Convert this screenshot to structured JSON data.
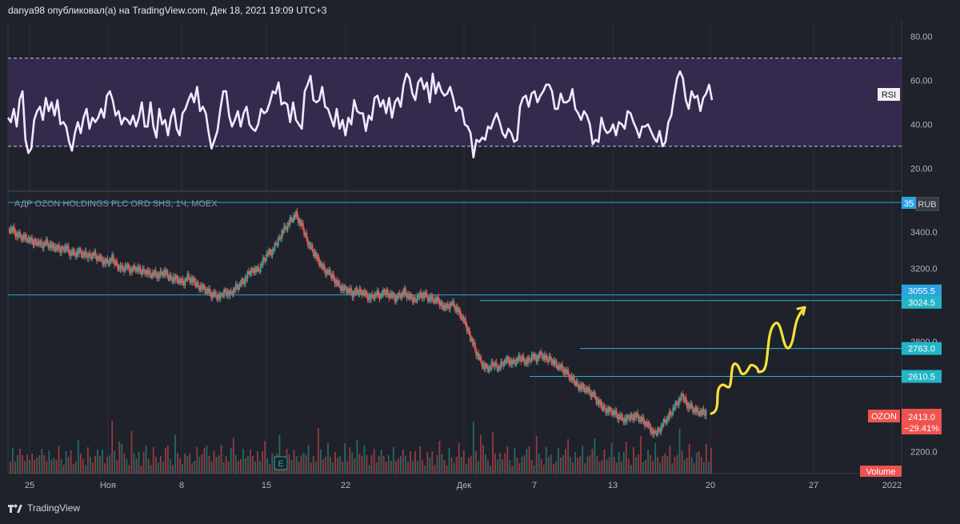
{
  "header": "danya98 опубликовал(а) на TradingView.com, Дек 18, 2021 19:09 UTC+3",
  "footer": {
    "brand": "TradingView"
  },
  "colors": {
    "bg": "#1f222b",
    "rsi_band": "#3a2c55",
    "rsi_line": "#f3e8ff",
    "hline": "#2aa3e0",
    "cyan": "#22b5c8",
    "red": "#ef5350",
    "green": "#26a69a",
    "arrow": "#f5e23a"
  },
  "chart_data": [
    {
      "type": "line",
      "indicator": "RSI",
      "label": "RSI",
      "y_ticks": [
        "80.00",
        "60.00",
        "40.00",
        "20.00"
      ],
      "ylim": [
        10,
        87
      ],
      "band": [
        30,
        70
      ],
      "values": [
        43,
        41,
        47,
        39,
        51,
        55,
        33,
        27,
        29,
        42,
        46,
        48,
        42,
        52,
        46,
        50,
        44,
        51,
        40,
        41,
        39,
        32,
        28,
        36,
        41,
        36,
        43,
        47,
        38,
        43,
        41,
        43,
        47,
        43,
        53,
        55,
        51,
        44,
        46,
        40,
        43,
        42,
        40,
        44,
        39,
        43,
        50,
        39,
        39,
        50,
        39,
        34,
        47,
        40,
        42,
        35,
        43,
        47,
        38,
        35,
        45,
        47,
        51,
        54,
        50,
        57,
        46,
        48,
        45,
        36,
        29,
        33,
        37,
        47,
        55,
        55,
        44,
        39,
        42,
        46,
        39,
        45,
        48,
        40,
        38,
        37,
        40,
        47,
        45,
        46,
        50,
        55,
        54,
        59,
        49,
        50,
        49,
        41,
        50,
        42,
        40,
        38,
        55,
        58,
        62,
        51,
        50,
        51,
        57,
        48,
        47,
        43,
        39,
        47,
        38,
        42,
        35,
        43,
        40,
        51,
        46,
        45,
        45,
        37,
        44,
        42,
        52,
        53,
        48,
        51,
        45,
        52,
        43,
        50,
        52,
        48,
        58,
        63,
        61,
        54,
        51,
        59,
        61,
        56,
        59,
        50,
        63,
        54,
        59,
        55,
        53,
        54,
        57,
        52,
        46,
        48,
        47,
        40,
        39,
        36,
        25,
        33,
        32,
        34,
        33,
        39,
        38,
        42,
        45,
        41,
        36,
        34,
        38,
        36,
        32,
        33,
        48,
        52,
        53,
        48,
        54,
        55,
        50,
        53,
        55,
        58,
        58,
        55,
        47,
        47,
        54,
        50,
        50,
        51,
        56,
        47,
        45,
        42,
        46,
        44,
        40,
        31,
        33,
        32,
        43,
        38,
        36,
        37,
        40,
        35,
        41,
        40,
        38,
        46,
        45,
        41,
        38,
        34,
        39,
        39,
        40,
        37,
        34,
        32,
        37,
        30,
        32,
        41,
        44,
        53,
        61,
        64,
        61,
        51,
        47,
        55,
        52,
        53,
        46,
        52,
        54,
        58,
        51
      ]
    },
    {
      "type": "candlestick",
      "symbol": "АДР OZON HOLDINGS PLC ORD SHS, 1Ч, MOEX",
      "currency": "RUB",
      "ylim": [
        2080,
        3600
      ],
      "y_ticks": [
        "3400.0",
        "3200.0",
        "2800.0",
        "2600.0",
        "2200.0"
      ],
      "x_ticks": [
        "25",
        "Ноя",
        "8",
        "15",
        "22",
        "Дек",
        "7",
        "13",
        "20",
        "27",
        "2022"
      ],
      "price_labels": [
        {
          "text": "3055.5",
          "value": 3055.5
        },
        {
          "text": "3024.5",
          "value": 3024.5
        },
        {
          "text": "2763.0",
          "value": 2763.0
        },
        {
          "text": "2610.5",
          "value": 2610.5
        }
      ],
      "last_price": {
        "symbol": "OZON",
        "value": "2413.0",
        "change": "−29.41%"
      },
      "top_partial_label": "35",
      "volume_label": "Volume",
      "event_marker": "E",
      "close_path": [
        3420,
        3410,
        3380,
        3370,
        3360,
        3340,
        3350,
        3330,
        3340,
        3320,
        3310,
        3300,
        3320,
        3290,
        3280,
        3290,
        3270,
        3270,
        3280,
        3260,
        3240,
        3230,
        3250,
        3220,
        3200,
        3210,
        3190,
        3200,
        3180,
        3190,
        3170,
        3170,
        3160,
        3180,
        3150,
        3150,
        3140,
        3120,
        3150,
        3130,
        3110,
        3100,
        3080,
        3060,
        3050,
        3040,
        3080,
        3060,
        3090,
        3110,
        3130,
        3170,
        3200,
        3190,
        3240,
        3280,
        3290,
        3340,
        3400,
        3430,
        3470,
        3490,
        3440,
        3380,
        3320,
        3280,
        3230,
        3190,
        3170,
        3150,
        3110,
        3090,
        3080,
        3060,
        3070,
        3080,
        3050,
        3040,
        3060,
        3050,
        3070,
        3060,
        3040,
        3050,
        3070,
        3040,
        3030,
        3050,
        3060,
        3040,
        3030,
        3020,
        3000,
        2990,
        3010,
        2980,
        2940,
        2890,
        2830,
        2760,
        2700,
        2660,
        2650,
        2680,
        2660,
        2690,
        2700,
        2680,
        2700,
        2710,
        2690,
        2720,
        2710,
        2730,
        2700,
        2710,
        2680,
        2660,
        2640,
        2610,
        2580,
        2560,
        2550,
        2530,
        2510,
        2470,
        2440,
        2430,
        2420,
        2400,
        2380,
        2370,
        2390,
        2400,
        2380,
        2360,
        2330,
        2290,
        2320,
        2360,
        2390,
        2430,
        2470,
        2500,
        2460,
        2440,
        2420,
        2410,
        2413
      ],
      "volume_pattern": [
        3,
        5,
        2,
        4,
        6,
        3,
        2,
        4,
        3,
        5,
        2,
        3,
        4,
        6,
        3,
        2,
        5,
        3,
        4,
        2,
        6,
        3,
        2,
        4,
        3,
        5,
        2,
        3,
        7,
        4,
        3,
        2,
        5,
        3,
        2,
        4,
        6,
        3,
        5,
        2,
        4,
        3,
        12,
        5,
        3,
        8,
        6,
        4,
        3,
        2,
        9,
        4,
        3,
        5,
        2,
        4,
        6,
        3,
        2,
        5,
        3,
        2,
        4,
        3,
        5,
        6,
        3,
        2,
        8,
        4,
        3,
        2,
        5,
        3,
        4,
        2,
        3,
        5,
        3,
        4,
        6,
        7,
        3,
        2,
        5,
        4,
        3,
        6,
        2,
        4,
        3,
        5,
        8,
        4,
        3,
        2,
        5,
        3,
        4,
        6,
        3,
        2,
        5,
        3,
        4,
        7,
        3,
        2,
        5,
        3,
        4,
        9,
        3,
        2,
        5,
        4,
        3,
        6,
        3,
        2,
        4,
        5,
        3,
        6,
        2,
        4,
        3,
        10,
        5,
        3,
        4,
        6,
        3,
        2,
        5,
        4,
        3,
        2,
        7,
        3,
        5,
        4,
        3,
        8,
        5,
        3,
        6,
        4,
        2
      ]
    }
  ]
}
